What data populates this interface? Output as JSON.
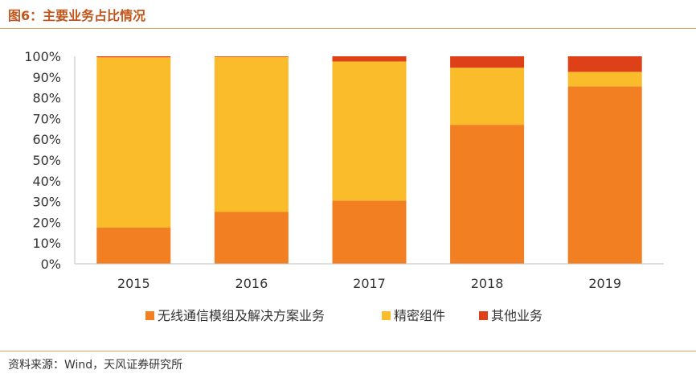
{
  "figure": {
    "title": "图6：主要业务占比情况",
    "source": "资料来源：Wind，天风证券研究所"
  },
  "colors": {
    "accent": "#c1561c",
    "rule": "#e7a05b"
  },
  "chart_data": {
    "type": "bar",
    "stacked": true,
    "categories": [
      "2015",
      "2016",
      "2017",
      "2018",
      "2019"
    ],
    "series": [
      {
        "name": "无线通信模组及解决方案业务",
        "color": "#f28022",
        "values": [
          17.5,
          25.0,
          30.5,
          67.0,
          85.5
        ]
      },
      {
        "name": "精密组件",
        "color": "#fbbc2c",
        "values": [
          82.0,
          74.7,
          67.0,
          27.5,
          7.0
        ]
      },
      {
        "name": "其他业务",
        "color": "#de4117",
        "values": [
          0.5,
          0.3,
          2.5,
          5.5,
          7.5
        ]
      }
    ],
    "ylim": [
      0,
      100
    ],
    "yticks": [
      "0%",
      "10%",
      "20%",
      "30%",
      "40%",
      "50%",
      "60%",
      "70%",
      "80%",
      "90%",
      "100%"
    ],
    "grid": false,
    "legend_position": "bottom"
  }
}
